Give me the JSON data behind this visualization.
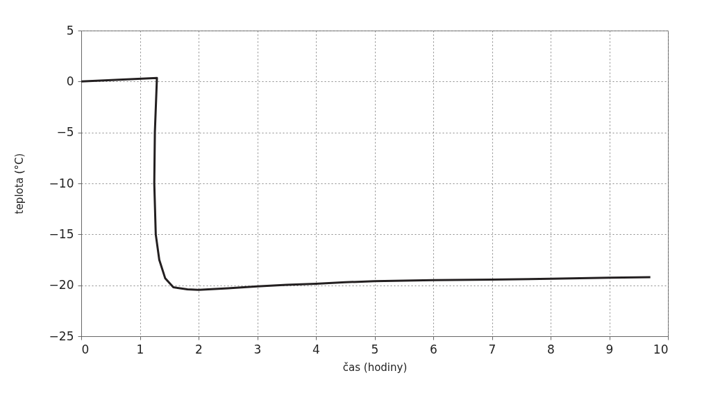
{
  "chart_data": {
    "type": "line",
    "xlabel": "čas (hodiny)",
    "ylabel": "teplota (°C)",
    "series": [
      {
        "color": "#231f20",
        "x": [
          0,
          1.29,
          1.255,
          1.245,
          1.27,
          1.33,
          1.43,
          1.57,
          1.81,
          2,
          2.5,
          3,
          3.5,
          4,
          4.5,
          5,
          5.5,
          6,
          7,
          8,
          9,
          9.7
        ],
        "values": [
          0,
          0.34,
          -5,
          -10,
          -15,
          -17.5,
          -19.3,
          -20.2,
          -20.4,
          -20.45,
          -20.3,
          -20.1,
          -19.95,
          -19.85,
          -19.7,
          -19.6,
          -19.55,
          -19.5,
          -19.45,
          -19.35,
          -19.25,
          -19.2
        ]
      }
    ],
    "xlim": [
      0,
      10
    ],
    "xticks": [
      0,
      1,
      2,
      3,
      4,
      5,
      6,
      7,
      8,
      9,
      10
    ],
    "ylim": [
      -25,
      5
    ],
    "yticks": [
      -25,
      -20,
      -15,
      -10,
      -5,
      0,
      5
    ],
    "grid": true,
    "marker": "none",
    "line_style": "solid",
    "legend": false
  }
}
